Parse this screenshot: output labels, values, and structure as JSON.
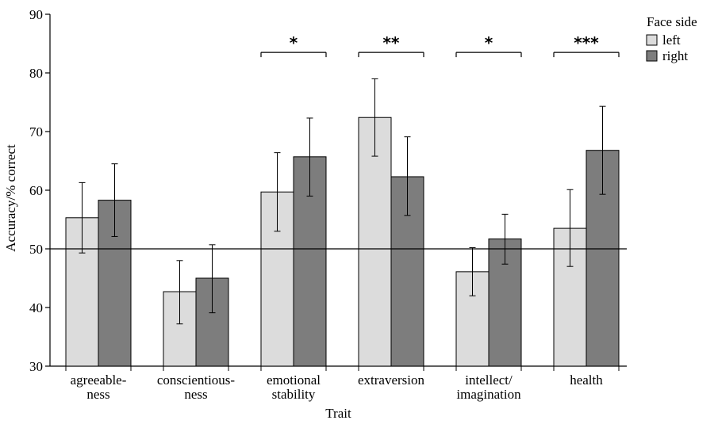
{
  "chart_data": {
    "type": "bar",
    "xlabel": "Trait",
    "ylabel": "Accuracy/% correct",
    "ylim": [
      30,
      90
    ],
    "yticks": [
      30,
      40,
      50,
      60,
      70,
      80,
      90
    ],
    "reference_line": 50,
    "categories": [
      [
        "agreeable-",
        "ness"
      ],
      [
        "conscientious-",
        "ness"
      ],
      [
        "emotional",
        "stability"
      ],
      [
        "extraversion"
      ],
      [
        "intellect/",
        "imagination"
      ],
      [
        "health"
      ]
    ],
    "series": [
      {
        "name": "left",
        "color": "#dcdcdc",
        "values": [
          55.3,
          42.7,
          59.7,
          72.4,
          46.1,
          53.5
        ],
        "err_low": [
          49.3,
          37.2,
          53.0,
          65.8,
          42.0,
          47.0
        ],
        "err_high": [
          61.3,
          48.0,
          66.4,
          79.0,
          50.2,
          60.1
        ]
      },
      {
        "name": "right",
        "color": "#7d7d7d",
        "values": [
          58.3,
          45.0,
          65.7,
          62.3,
          51.7,
          66.8
        ],
        "err_low": [
          52.1,
          39.1,
          59.0,
          55.7,
          47.4,
          59.3
        ],
        "err_high": [
          64.5,
          50.7,
          72.3,
          69.1,
          55.9,
          74.3
        ]
      }
    ],
    "legend": {
      "title": "Face side",
      "placement": "top-right",
      "entries": [
        "left",
        "right"
      ]
    },
    "significance": [
      {
        "category_index": 2,
        "label": "*"
      },
      {
        "category_index": 3,
        "label": "**"
      },
      {
        "category_index": 4,
        "label": "*"
      },
      {
        "category_index": 5,
        "label": "***"
      }
    ],
    "significance_level": 83.5,
    "grid": false
  }
}
